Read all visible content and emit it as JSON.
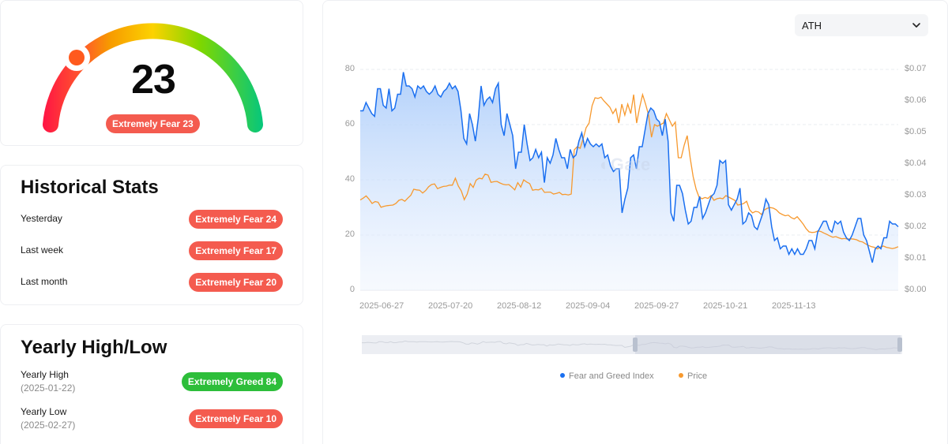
{
  "gauge": {
    "value": "23",
    "badge": "Extremely Fear 23",
    "gradient": [
      "#ff1744",
      "#ff5a2a",
      "#f79a00",
      "#fcd200",
      "#7ed700",
      "#08c77a"
    ]
  },
  "historical": {
    "title": "Historical Stats",
    "rows": [
      {
        "label": "Yesterday",
        "badge": "Extremely Fear 24"
      },
      {
        "label": "Last week",
        "badge": "Extremely Fear 17"
      },
      {
        "label": "Last month",
        "badge": "Extremely Fear 20"
      }
    ]
  },
  "yearly": {
    "title": "Yearly High/Low",
    "rows": [
      {
        "label": "Yearly High",
        "date": "(2025-01-22)",
        "badge": "Extremely Greed 84"
      },
      {
        "label": "Yearly Low",
        "date": "(2025-02-27)",
        "badge": "Extremely Fear 10"
      }
    ]
  },
  "chart": {
    "range_select": {
      "value": "ATH",
      "icon": "chevron-down-icon"
    },
    "watermark": "Gate",
    "legend": [
      {
        "label": "Fear and Greed Index",
        "color": "#1a6ff0"
      },
      {
        "label": "Price",
        "color": "#f7992e"
      }
    ]
  },
  "chart_data": {
    "type": "line",
    "title": "",
    "xlabel": "",
    "ylabel": "",
    "x_ticks": [
      "2025-06-27",
      "2025-07-20",
      "2025-08-12",
      "2025-09-04",
      "2025-09-27",
      "2025-10-21",
      "2025-11-13"
    ],
    "y_left_ticks": [
      "0",
      "20",
      "40",
      "60",
      "80"
    ],
    "y_right_ticks": [
      "$0.00",
      "$0.01",
      "$0.02",
      "$0.03",
      "$0.04",
      "$0.05",
      "$0.06",
      "$0.07"
    ],
    "ylim_left": [
      0,
      80
    ],
    "ylim_right": [
      0,
      0.07
    ],
    "grid": true,
    "legend_position": "bottom",
    "series": [
      {
        "name": "Fear and Greed Index",
        "axis": "left",
        "color": "#1a6ff0",
        "values": [
          65,
          65,
          68,
          66,
          64,
          63,
          73,
          73,
          67,
          66,
          73,
          65,
          66,
          71,
          71,
          79,
          74,
          74,
          73,
          70,
          74,
          73,
          74,
          72,
          71,
          72,
          74,
          71,
          70,
          72,
          73,
          75,
          73,
          74,
          72,
          65,
          55,
          53,
          64,
          60,
          54,
          62,
          74,
          67,
          69,
          70,
          68,
          73,
          75,
          60,
          56,
          64,
          60,
          56,
          44,
          50,
          50,
          60,
          53,
          47,
          48,
          51,
          48,
          50,
          39,
          48,
          46,
          49,
          55,
          51,
          48,
          48,
          44,
          51,
          48,
          49,
          54,
          57,
          52,
          55,
          53,
          52,
          53,
          52,
          53,
          48,
          49,
          45,
          43,
          44,
          44,
          28,
          33,
          37,
          48,
          49,
          44,
          52,
          52,
          58,
          64,
          66,
          65,
          62,
          61,
          56,
          62,
          54,
          28,
          25,
          38,
          38,
          35,
          29,
          24,
          25,
          30,
          30,
          34,
          26,
          28,
          31,
          34,
          35,
          38,
          47,
          46,
          47,
          31,
          29,
          31,
          33,
          37,
          24,
          25,
          28,
          27,
          23,
          22,
          25,
          28,
          33,
          31,
          23,
          18,
          19,
          15,
          16,
          16,
          13,
          15,
          13,
          15,
          13,
          13,
          15,
          18,
          18,
          15,
          21,
          23,
          25,
          25,
          22,
          21,
          25,
          24,
          25,
          21,
          19,
          18,
          20,
          23,
          26,
          26,
          20,
          18,
          14,
          10,
          15,
          16,
          15,
          19,
          19,
          25,
          24,
          24,
          23
        ]
      },
      {
        "name": "Price",
        "axis": "right",
        "color": "#f7992e",
        "values": [
          0.0286,
          0.0292,
          0.0299,
          0.0288,
          0.0275,
          0.0281,
          0.0279,
          0.0263,
          0.0266,
          0.0268,
          0.0269,
          0.027,
          0.0275,
          0.0285,
          0.0288,
          0.0282,
          0.0292,
          0.0301,
          0.032,
          0.0318,
          0.0317,
          0.0308,
          0.0316,
          0.0328,
          0.0335,
          0.0337,
          0.0322,
          0.0326,
          0.0329,
          0.033,
          0.0333,
          0.0333,
          0.0355,
          0.033,
          0.0315,
          0.0287,
          0.0305,
          0.0338,
          0.0326,
          0.0349,
          0.0355,
          0.0353,
          0.0368,
          0.0365,
          0.0342,
          0.0344,
          0.0345,
          0.034,
          0.0336,
          0.0334,
          0.0335,
          0.0327,
          0.0318,
          0.0341,
          0.0327,
          0.035,
          0.0343,
          0.0338,
          0.0317,
          0.0319,
          0.0318,
          0.0323,
          0.031,
          0.0311,
          0.0311,
          0.0305,
          0.0307,
          0.031,
          0.0303,
          0.0304,
          0.0302,
          0.0305,
          0.0445,
          0.0455,
          0.045,
          0.048,
          0.0515,
          0.053,
          0.0585,
          0.061,
          0.0608,
          0.0612,
          0.06,
          0.059,
          0.058,
          0.056,
          0.0575,
          0.053,
          0.059,
          0.0555,
          0.059,
          0.056,
          0.062,
          0.053,
          0.058,
          0.062,
          0.059,
          0.0555,
          0.0485,
          0.0525,
          0.052,
          0.0525,
          0.053,
          0.056,
          0.054,
          0.052,
          0.0533,
          0.042,
          0.042,
          0.046,
          0.049,
          0.042,
          0.036,
          0.032,
          0.0295,
          0.029,
          0.0294,
          0.0291,
          0.03,
          0.0285,
          0.029,
          0.0292,
          0.029,
          0.03,
          0.0295,
          0.029,
          0.0285,
          0.027,
          0.0272,
          0.0275,
          0.0282,
          0.0255,
          0.0245,
          0.025,
          0.0248,
          0.024,
          0.0255,
          0.026,
          0.0262,
          0.026,
          0.0255,
          0.0245,
          0.024,
          0.0236,
          0.0238,
          0.023,
          0.0226,
          0.0233,
          0.0222,
          0.021,
          0.0195,
          0.0185,
          0.0183,
          0.0184,
          0.0188,
          0.0186,
          0.0181,
          0.0177,
          0.0172,
          0.0168,
          0.017,
          0.0166,
          0.0163,
          0.0164,
          0.0162,
          0.0163,
          0.0162,
          0.016,
          0.0155,
          0.0153,
          0.0147,
          0.0142,
          0.0138,
          0.0136,
          0.0131,
          0.0137,
          0.014,
          0.0136,
          0.0134,
          0.0132,
          0.0134,
          0.0138
        ]
      }
    ]
  }
}
